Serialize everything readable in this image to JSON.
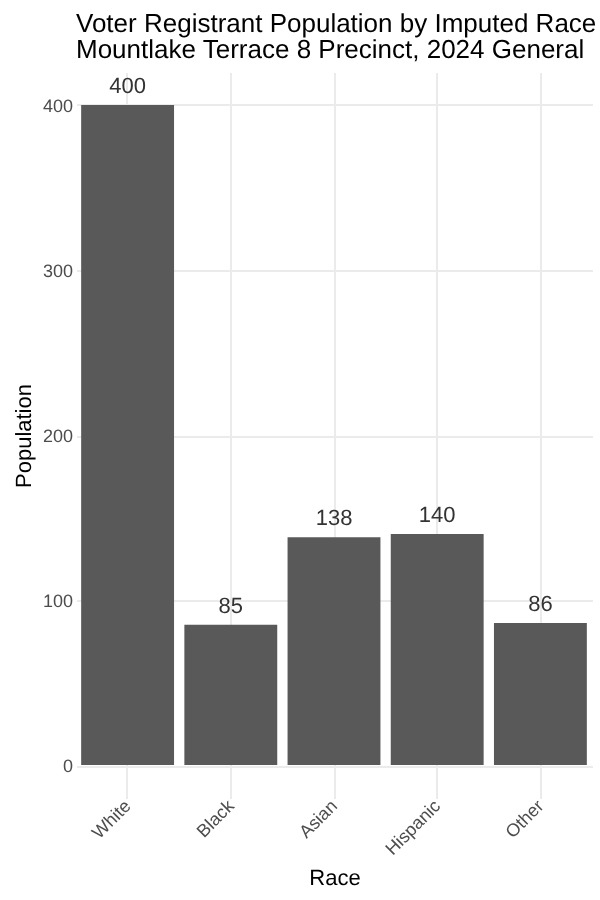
{
  "chart_data": {
    "type": "bar",
    "title": "Voter Registrant Population by Imputed Race",
    "subtitle": "Mountlake Terrace  8 Precinct,  2024 General",
    "xlabel": "Race",
    "ylabel": "Population",
    "categories": [
      "White",
      "Black",
      "Asian",
      "Hispanic",
      "Other"
    ],
    "values": [
      400,
      85,
      138,
      140,
      86
    ],
    "color": "#595959",
    "ylim": [
      -20,
      420
    ],
    "yticks": [
      0,
      100,
      200,
      300,
      400
    ],
    "grid": true,
    "data_labels": true
  }
}
